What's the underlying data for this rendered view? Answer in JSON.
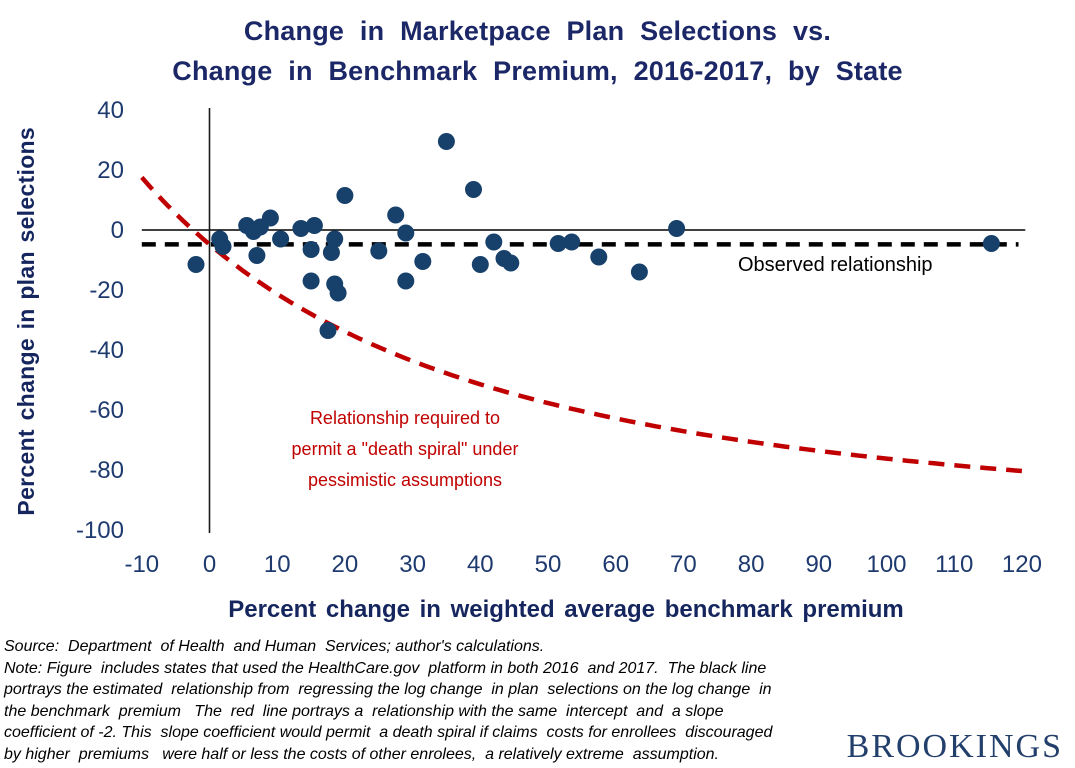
{
  "title": {
    "lines": [
      "Change in Marketpace Plan Selections vs.",
      "Change in Benchmark Premium, 2016-2017, by State"
    ]
  },
  "chart_data": {
    "type": "scatter",
    "xlabel": "Percent change in weighted average benchmark premium",
    "ylabel": "Percent change in plan selections",
    "xlim": [
      -10,
      120
    ],
    "ylim": [
      -100,
      40
    ],
    "x_ticks": [
      -10,
      0,
      10,
      20,
      30,
      40,
      50,
      60,
      70,
      80,
      90,
      100,
      110,
      120
    ],
    "y_ticks": [
      40,
      20,
      0,
      -20,
      -40,
      -60,
      -80,
      -100
    ],
    "grid": false,
    "point_color": "#17406b",
    "points": [
      [
        -2,
        -11.5
      ],
      [
        1.5,
        -3
      ],
      [
        2,
        -5.5
      ],
      [
        5.5,
        1.5
      ],
      [
        6.5,
        -0.5
      ],
      [
        7.5,
        1
      ],
      [
        9,
        4
      ],
      [
        7,
        -8.5
      ],
      [
        10.5,
        -3
      ],
      [
        13.5,
        0.5
      ],
      [
        15.5,
        1.5
      ],
      [
        15,
        -6.5
      ],
      [
        15,
        -17
      ],
      [
        17.5,
        -33.5
      ],
      [
        18,
        -7.5
      ],
      [
        18.5,
        -3
      ],
      [
        18.5,
        -18
      ],
      [
        19,
        -21
      ],
      [
        20,
        11.5
      ],
      [
        25,
        -7
      ],
      [
        27.5,
        5
      ],
      [
        29,
        -1
      ],
      [
        29,
        -17
      ],
      [
        31.5,
        -10.5
      ],
      [
        35,
        29.5
      ],
      [
        39,
        13.5
      ],
      [
        40,
        -11.5
      ],
      [
        42,
        -4
      ],
      [
        43.5,
        -9.5
      ],
      [
        44.5,
        -11
      ],
      [
        51.5,
        -4.5
      ],
      [
        53.5,
        -4
      ],
      [
        57.5,
        -9
      ],
      [
        63.5,
        -14
      ],
      [
        69,
        0.5
      ],
      [
        115.5,
        -4.5
      ]
    ],
    "zero_line": {
      "y": 0,
      "color": "#000000",
      "style": "solid"
    },
    "observed_line": {
      "y": -4.8,
      "label": "Observed relationship",
      "color": "#000000",
      "style": "dashed"
    },
    "death_spiral_curve": {
      "intercept": -4.8,
      "slope_coefficient": -2,
      "x_start": -10,
      "x_end": 120.5,
      "color": "#c00000",
      "style": "dashed",
      "label_lines": [
        "Relationship required to",
        "permit a \"death spiral\" under",
        "pessimistic assumptions"
      ]
    }
  },
  "notes": {
    "lines": [
      "Source:  Department  of Health  and Human  Services; author's calculations.",
      "Note: Figure  includes states that used the HealthCare.gov  platform in both 2016  and 2017.  The black line",
      "portrays the estimated  relationship from  regressing the log change  in plan  selections on the log change  in",
      "the benchmark  premium   The  red  line portrays a  relationship with the same  intercept  and  a slope",
      "coefficient of -2. This  slope coefficient would permit  a death spiral if claims  costs for enrollees  discouraged",
      "by higher  premiums   were half or less the costs of other enrolees,  a relatively extreme  assumption."
    ]
  },
  "logo": {
    "text": "BROOKINGS"
  }
}
